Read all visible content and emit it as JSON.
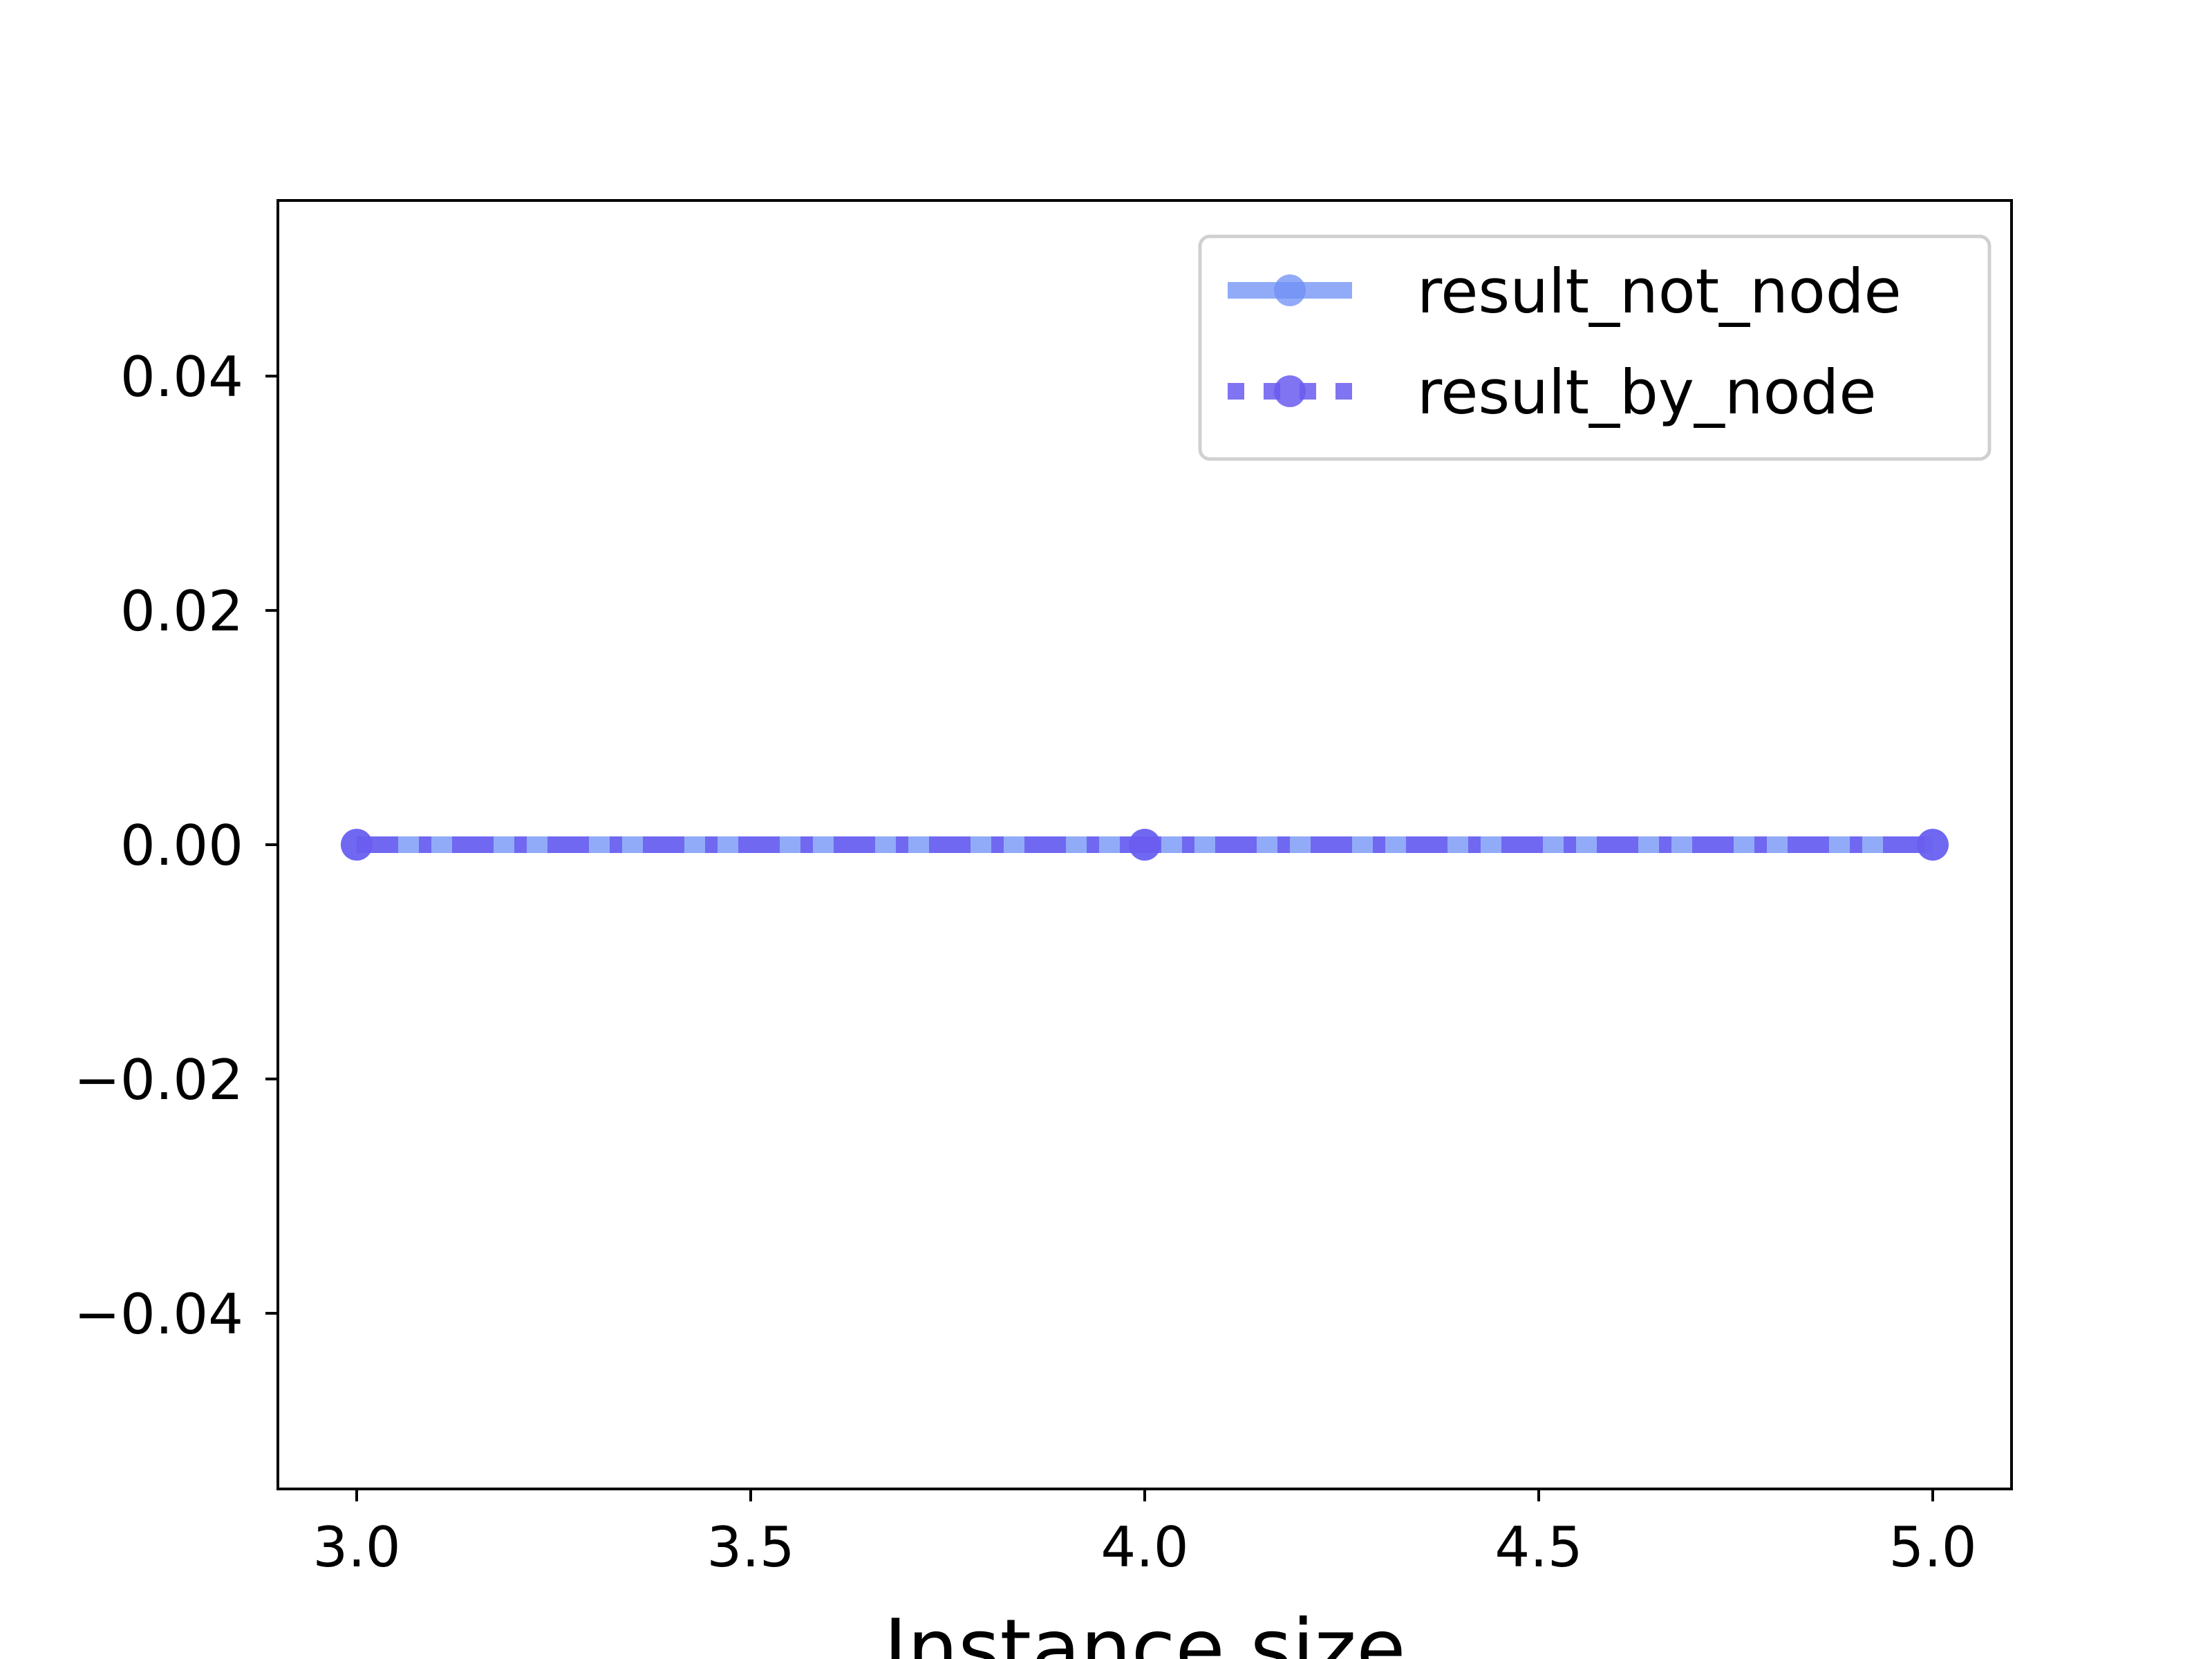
{
  "chart_data": {
    "type": "line",
    "title": "",
    "xlabel": "Instance size",
    "ylabel": "",
    "x": [
      3.0,
      4.0,
      5.0
    ],
    "series": [
      {
        "name": "result_not_node",
        "values": [
          0.0,
          0.0,
          0.0
        ],
        "color": "#6d8ff5",
        "linestyle": "solid",
        "marker": "circle"
      },
      {
        "name": "result_by_node",
        "values": [
          0.0,
          0.0,
          0.0
        ],
        "color": "#6a5cf0",
        "linestyle": "dashdot",
        "marker": "circle"
      }
    ],
    "xlim": [
      2.9,
      5.1
    ],
    "ylim": [
      -0.055,
      0.055
    ],
    "xticks": [
      3.0,
      3.5,
      4.0,
      4.5,
      5.0
    ],
    "xtick_labels": [
      "3.0",
      "3.5",
      "4.0",
      "4.5",
      "5.0"
    ],
    "yticks": [
      0.04,
      0.02,
      0.0,
      -0.02,
      -0.04
    ],
    "ytick_labels": [
      "0.04",
      "0.02",
      "0.00",
      "−0.02",
      "−0.04"
    ],
    "grid": false,
    "legend_position": "top-right"
  }
}
